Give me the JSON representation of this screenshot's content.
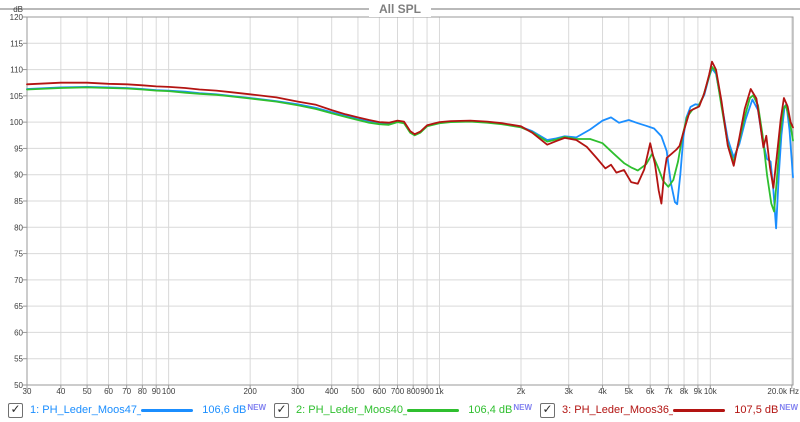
{
  "title": "All SPL",
  "y_unit_label": "dB",
  "colors": {
    "blue": "#1b8eff",
    "green": "#2fbf2f",
    "red": "#b31412",
    "badge": "#8282f0",
    "grid": "#d9d9d9",
    "border": "#999999",
    "axis_text": "#3c3c3c",
    "title_text": "#7f7f7f"
  },
  "legend": [
    {
      "label": "1: PH_Leder_Moos47_L",
      "value": "106,6 dB",
      "badge": "NEW",
      "color": "#1b8eff",
      "checked": true
    },
    {
      "label": "2: PH_Leder_Moos40_L",
      "value": "106,4 dB",
      "badge": "NEW",
      "color": "#2fbf2f",
      "checked": true
    },
    {
      "label": "3: PH_Leder_Moos36_L",
      "value": "107,5 dB",
      "badge": "NEW",
      "color": "#b31412",
      "checked": true
    }
  ],
  "chart_data": {
    "type": "line",
    "title": "All SPL",
    "x_axis": {
      "scale": "log",
      "unit": "Hz",
      "min": 30,
      "max": 20200,
      "ticks": [
        {
          "f": 30,
          "label": "30"
        },
        {
          "f": 40,
          "label": "40"
        },
        {
          "f": 50,
          "label": "50"
        },
        {
          "f": 60,
          "label": "60"
        },
        {
          "f": 70,
          "label": "70"
        },
        {
          "f": 80,
          "label": "80"
        },
        {
          "f": 90,
          "label": "90"
        },
        {
          "f": 100,
          "label": "100"
        },
        {
          "f": 200,
          "label": "200"
        },
        {
          "f": 300,
          "label": "300"
        },
        {
          "f": 400,
          "label": "400"
        },
        {
          "f": 500,
          "label": "500"
        },
        {
          "f": 600,
          "label": "600"
        },
        {
          "f": 700,
          "label": "700"
        },
        {
          "f": 800,
          "label": "800"
        },
        {
          "f": 900,
          "label": "900"
        },
        {
          "f": 1000,
          "label": "1k"
        },
        {
          "f": 2000,
          "label": "2k"
        },
        {
          "f": 3000,
          "label": "3k"
        },
        {
          "f": 4000,
          "label": "4k"
        },
        {
          "f": 5000,
          "label": "5k"
        },
        {
          "f": 6000,
          "label": "6k"
        },
        {
          "f": 7000,
          "label": "7k"
        },
        {
          "f": 8000,
          "label": "8k"
        },
        {
          "f": 9000,
          "label": "9k"
        },
        {
          "f": 10000,
          "label": "10k"
        },
        {
          "f": 20000,
          "label": "20.0k Hz",
          "align": "end"
        }
      ]
    },
    "y_axis": {
      "unit": "dB",
      "min": 50,
      "max": 120,
      "step": 5,
      "grid": true
    },
    "legend_position": "bottom",
    "series": [
      {
        "name": "PH_Leder_Moos47_L",
        "color": "#1b8eff",
        "points": [
          [
            30,
            106.3
          ],
          [
            40,
            106.6
          ],
          [
            50,
            106.7
          ],
          [
            60,
            106.6
          ],
          [
            70,
            106.5
          ],
          [
            80,
            106.3
          ],
          [
            90,
            106.1
          ],
          [
            100,
            106.0
          ],
          [
            115,
            105.8
          ],
          [
            130,
            105.5
          ],
          [
            150,
            105.3
          ],
          [
            170,
            105.0
          ],
          [
            200,
            104.6
          ],
          [
            250,
            104.0
          ],
          [
            300,
            103.4
          ],
          [
            350,
            102.7
          ],
          [
            400,
            101.9
          ],
          [
            450,
            101.2
          ],
          [
            500,
            100.6
          ],
          [
            550,
            100.1
          ],
          [
            600,
            99.8
          ],
          [
            650,
            99.7
          ],
          [
            700,
            100.1
          ],
          [
            740,
            100.0
          ],
          [
            780,
            98.2
          ],
          [
            810,
            97.6
          ],
          [
            850,
            98.1
          ],
          [
            900,
            99.3
          ],
          [
            1000,
            99.9
          ],
          [
            1100,
            100.1
          ],
          [
            1300,
            100.2
          ],
          [
            1500,
            100.0
          ],
          [
            1700,
            99.7
          ],
          [
            2000,
            99.1
          ],
          [
            2200,
            98.3
          ],
          [
            2500,
            96.6
          ],
          [
            2700,
            96.9
          ],
          [
            2900,
            97.3
          ],
          [
            3200,
            97.1
          ],
          [
            3600,
            98.6
          ],
          [
            4000,
            100.3
          ],
          [
            4300,
            100.9
          ],
          [
            4600,
            99.9
          ],
          [
            5000,
            100.4
          ],
          [
            5400,
            99.8
          ],
          [
            5800,
            99.3
          ],
          [
            6200,
            98.8
          ],
          [
            6600,
            97.3
          ],
          [
            6900,
            94.5
          ],
          [
            7150,
            88.5
          ],
          [
            7400,
            84.8
          ],
          [
            7550,
            84.4
          ],
          [
            7750,
            90.0
          ],
          [
            7950,
            97.0
          ],
          [
            8150,
            100.8
          ],
          [
            8450,
            102.9
          ],
          [
            8800,
            103.4
          ],
          [
            9100,
            103.3
          ],
          [
            9500,
            105.2
          ],
          [
            9900,
            108.6
          ],
          [
            10150,
            110.2
          ],
          [
            10500,
            109.2
          ],
          [
            11000,
            103.5
          ],
          [
            11600,
            96.8
          ],
          [
            12200,
            93.3
          ],
          [
            12800,
            95.8
          ],
          [
            13500,
            100.5
          ],
          [
            14300,
            104.3
          ],
          [
            15000,
            102.3
          ],
          [
            15600,
            96.5
          ],
          [
            16200,
            93.0
          ],
          [
            16700,
            92.5
          ],
          [
            17100,
            87.0
          ],
          [
            17500,
            79.8
          ],
          [
            17900,
            90.0
          ],
          [
            18300,
            97.5
          ],
          [
            18800,
            103.0
          ],
          [
            19100,
            103.4
          ],
          [
            19600,
            98.5
          ],
          [
            20200,
            89.5
          ]
        ]
      },
      {
        "name": "PH_Leder_Moos40_L",
        "color": "#2fbf2f",
        "points": [
          [
            30,
            106.2
          ],
          [
            40,
            106.5
          ],
          [
            50,
            106.6
          ],
          [
            60,
            106.5
          ],
          [
            70,
            106.4
          ],
          [
            80,
            106.2
          ],
          [
            90,
            106.0
          ],
          [
            100,
            105.9
          ],
          [
            115,
            105.6
          ],
          [
            130,
            105.4
          ],
          [
            150,
            105.2
          ],
          [
            170,
            104.9
          ],
          [
            200,
            104.5
          ],
          [
            250,
            103.9
          ],
          [
            300,
            103.2
          ],
          [
            350,
            102.5
          ],
          [
            400,
            101.7
          ],
          [
            450,
            101.0
          ],
          [
            500,
            100.4
          ],
          [
            550,
            99.9
          ],
          [
            600,
            99.6
          ],
          [
            650,
            99.5
          ],
          [
            700,
            100.0
          ],
          [
            740,
            99.8
          ],
          [
            780,
            98.0
          ],
          [
            810,
            97.5
          ],
          [
            850,
            98.0
          ],
          [
            900,
            99.2
          ],
          [
            1000,
            99.8
          ],
          [
            1100,
            100.0
          ],
          [
            1300,
            100.1
          ],
          [
            1500,
            99.9
          ],
          [
            1700,
            99.6
          ],
          [
            2000,
            99.0
          ],
          [
            2200,
            98.1
          ],
          [
            2500,
            96.3
          ],
          [
            2700,
            96.7
          ],
          [
            2900,
            97.2
          ],
          [
            3200,
            96.8
          ],
          [
            3600,
            96.8
          ],
          [
            4000,
            96.0
          ],
          [
            4400,
            94.0
          ],
          [
            4800,
            92.2
          ],
          [
            5100,
            91.4
          ],
          [
            5400,
            90.8
          ],
          [
            5800,
            92.0
          ],
          [
            6100,
            94.0
          ],
          [
            6400,
            91.5
          ],
          [
            6700,
            88.8
          ],
          [
            7000,
            87.7
          ],
          [
            7300,
            89.0
          ],
          [
            7600,
            92.5
          ],
          [
            7900,
            97.5
          ],
          [
            8200,
            101.0
          ],
          [
            8600,
            102.4
          ],
          [
            9000,
            102.9
          ],
          [
            9400,
            104.8
          ],
          [
            9800,
            107.9
          ],
          [
            10150,
            110.5
          ],
          [
            10500,
            109.6
          ],
          [
            11000,
            103.0
          ],
          [
            11600,
            95.8
          ],
          [
            12200,
            92.4
          ],
          [
            12800,
            96.5
          ],
          [
            13400,
            101.0
          ],
          [
            14000,
            104.6
          ],
          [
            14400,
            105.1
          ],
          [
            15000,
            103.2
          ],
          [
            15600,
            97.5
          ],
          [
            16200,
            90.0
          ],
          [
            16800,
            84.5
          ],
          [
            17200,
            83.0
          ],
          [
            17600,
            89.0
          ],
          [
            18100,
            97.5
          ],
          [
            18600,
            102.5
          ],
          [
            19000,
            103.2
          ],
          [
            19600,
            100.5
          ],
          [
            20200,
            96.5
          ]
        ]
      },
      {
        "name": "PH_Leder_Moos36_L",
        "color": "#b31412",
        "points": [
          [
            30,
            107.2
          ],
          [
            40,
            107.5
          ],
          [
            50,
            107.5
          ],
          [
            60,
            107.3
          ],
          [
            70,
            107.2
          ],
          [
            80,
            107.0
          ],
          [
            90,
            106.8
          ],
          [
            100,
            106.7
          ],
          [
            115,
            106.5
          ],
          [
            130,
            106.2
          ],
          [
            150,
            106.0
          ],
          [
            170,
            105.7
          ],
          [
            200,
            105.3
          ],
          [
            250,
            104.7
          ],
          [
            300,
            103.9
          ],
          [
            350,
            103.3
          ],
          [
            400,
            102.3
          ],
          [
            450,
            101.5
          ],
          [
            500,
            100.9
          ],
          [
            550,
            100.4
          ],
          [
            600,
            100.0
          ],
          [
            650,
            99.9
          ],
          [
            700,
            100.3
          ],
          [
            740,
            100.1
          ],
          [
            780,
            98.3
          ],
          [
            810,
            97.7
          ],
          [
            850,
            98.2
          ],
          [
            900,
            99.4
          ],
          [
            1000,
            100.0
          ],
          [
            1100,
            100.2
          ],
          [
            1300,
            100.3
          ],
          [
            1500,
            100.1
          ],
          [
            1700,
            99.8
          ],
          [
            2000,
            99.2
          ],
          [
            2200,
            98.0
          ],
          [
            2500,
            95.7
          ],
          [
            2700,
            96.4
          ],
          [
            2900,
            97.0
          ],
          [
            3200,
            96.6
          ],
          [
            3500,
            95.3
          ],
          [
            3800,
            93.2
          ],
          [
            4100,
            91.2
          ],
          [
            4300,
            91.9
          ],
          [
            4500,
            90.4
          ],
          [
            4800,
            90.9
          ],
          [
            5100,
            88.6
          ],
          [
            5400,
            88.3
          ],
          [
            5700,
            91.0
          ],
          [
            6000,
            96.0
          ],
          [
            6250,
            92.0
          ],
          [
            6450,
            87.0
          ],
          [
            6600,
            84.5
          ],
          [
            6750,
            90.0
          ],
          [
            6900,
            93.2
          ],
          [
            7200,
            94.0
          ],
          [
            7500,
            94.8
          ],
          [
            7700,
            95.5
          ],
          [
            8000,
            98.5
          ],
          [
            8400,
            102.1
          ],
          [
            8700,
            102.5
          ],
          [
            9100,
            103.0
          ],
          [
            9500,
            105.5
          ],
          [
            9900,
            109.0
          ],
          [
            10150,
            111.5
          ],
          [
            10500,
            110.0
          ],
          [
            11000,
            104.0
          ],
          [
            11600,
            95.5
          ],
          [
            12200,
            91.7
          ],
          [
            12800,
            97.0
          ],
          [
            13400,
            102.5
          ],
          [
            14100,
            106.3
          ],
          [
            14800,
            104.5
          ],
          [
            15300,
            99.5
          ],
          [
            15700,
            95.2
          ],
          [
            16100,
            97.4
          ],
          [
            16600,
            91.5
          ],
          [
            17100,
            87.5
          ],
          [
            17600,
            93.5
          ],
          [
            18200,
            100.5
          ],
          [
            18700,
            104.6
          ],
          [
            19300,
            103.0
          ],
          [
            19800,
            100.0
          ],
          [
            20200,
            99.0
          ]
        ]
      }
    ]
  }
}
